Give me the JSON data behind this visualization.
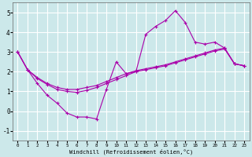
{
  "xlabel": "Windchill (Refroidissement éolien,°C)",
  "background_color": "#cce8ea",
  "line_color": "#aa00aa",
  "grid_color": "#ffffff",
  "ylim": [
    -1.5,
    5.5
  ],
  "xlim": [
    -0.5,
    23.5
  ],
  "yticks": [
    -1,
    0,
    1,
    2,
    3,
    4,
    5
  ],
  "xticks": [
    0,
    1,
    2,
    3,
    4,
    5,
    6,
    7,
    8,
    9,
    10,
    11,
    12,
    13,
    14,
    15,
    16,
    17,
    18,
    19,
    20,
    21,
    22,
    23
  ],
  "line1_y": [
    3.0,
    2.1,
    1.4,
    0.8,
    0.4,
    -0.1,
    -0.3,
    -0.3,
    -0.4,
    1.1,
    2.5,
    1.9,
    2.0,
    3.9,
    4.3,
    4.6,
    5.1,
    4.5,
    3.5,
    3.4,
    3.5,
    3.2,
    2.4,
    2.3
  ],
  "line2_y": [
    3.0,
    2.1,
    1.7,
    1.4,
    1.2,
    1.1,
    1.1,
    1.2,
    1.3,
    1.5,
    1.7,
    1.9,
    2.05,
    2.15,
    2.25,
    2.35,
    2.5,
    2.65,
    2.8,
    2.95,
    3.1,
    3.2,
    2.4,
    2.3
  ],
  "line3_y": [
    3.0,
    2.1,
    1.65,
    1.35,
    1.1,
    1.0,
    0.95,
    1.05,
    1.2,
    1.4,
    1.6,
    1.8,
    2.0,
    2.1,
    2.2,
    2.3,
    2.45,
    2.6,
    2.75,
    2.9,
    3.05,
    3.15,
    2.4,
    2.3
  ]
}
